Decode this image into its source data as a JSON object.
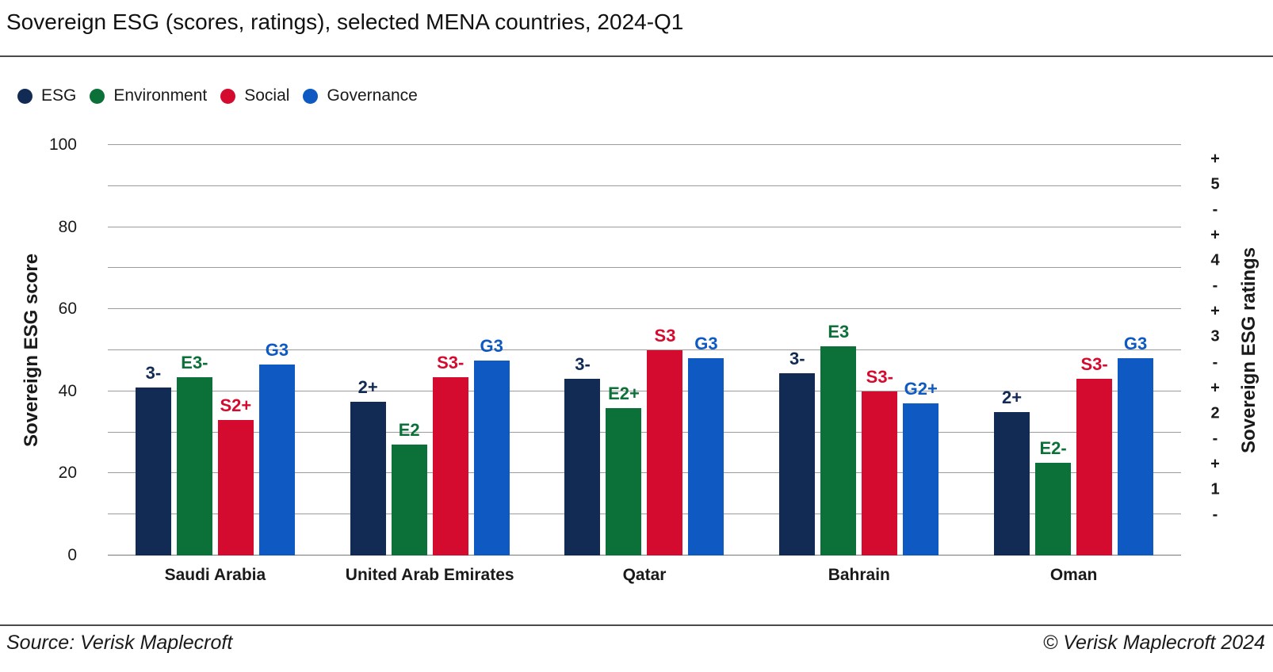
{
  "header": {
    "title": "Sovereign ESG (scores, ratings), selected MENA countries, 2024-Q1"
  },
  "footer": {
    "source": "Source: Verisk Maplecroft",
    "copyright": "© Verisk Maplecroft 2024"
  },
  "chart_data": {
    "type": "bar",
    "title": "Sovereign ESG (scores, ratings), selected MENA countries, 2024-Q1",
    "categories": [
      "Saudi Arabia",
      "United Arab Emirates",
      "Qatar",
      "Bahrain",
      "Oman"
    ],
    "series": [
      {
        "name": "ESG",
        "color": "#122B54",
        "values": [
          41,
          37.5,
          43,
          44.5,
          35
        ],
        "ratings": [
          "3-",
          "2+",
          "3-",
          "3-",
          "2+"
        ]
      },
      {
        "name": "Environment",
        "color": "#0C7039",
        "values": [
          43.5,
          27,
          36,
          51,
          22.5
        ],
        "ratings": [
          "E3-",
          "E2",
          "E2+",
          "E3",
          "E2-"
        ]
      },
      {
        "name": "Social",
        "color": "#D40B2E",
        "values": [
          33,
          43.5,
          50,
          40,
          43
        ],
        "ratings": [
          "S2+",
          "S3-",
          "S3",
          "S3-",
          "S3-"
        ]
      },
      {
        "name": "Governance",
        "color": "#0E59C2",
        "values": [
          46.5,
          47.5,
          48,
          37,
          48
        ],
        "ratings": [
          "G3",
          "G3",
          "G3",
          "G2+",
          "G3"
        ]
      }
    ],
    "ylabel_left": "Sovereign ESG score",
    "ylabel_right": "Sovereign ESG ratings",
    "yticks_left": [
      100,
      80,
      60,
      40,
      20,
      0
    ],
    "yticks_right": [
      "+",
      "5",
      "-",
      "+",
      "4",
      "-",
      "+",
      "3",
      "-",
      "+",
      "2",
      "-",
      "+",
      "1",
      "-"
    ],
    "ylim": [
      0,
      100
    ],
    "gridline_step": 10,
    "grid": true,
    "legend_position": "top-left"
  }
}
